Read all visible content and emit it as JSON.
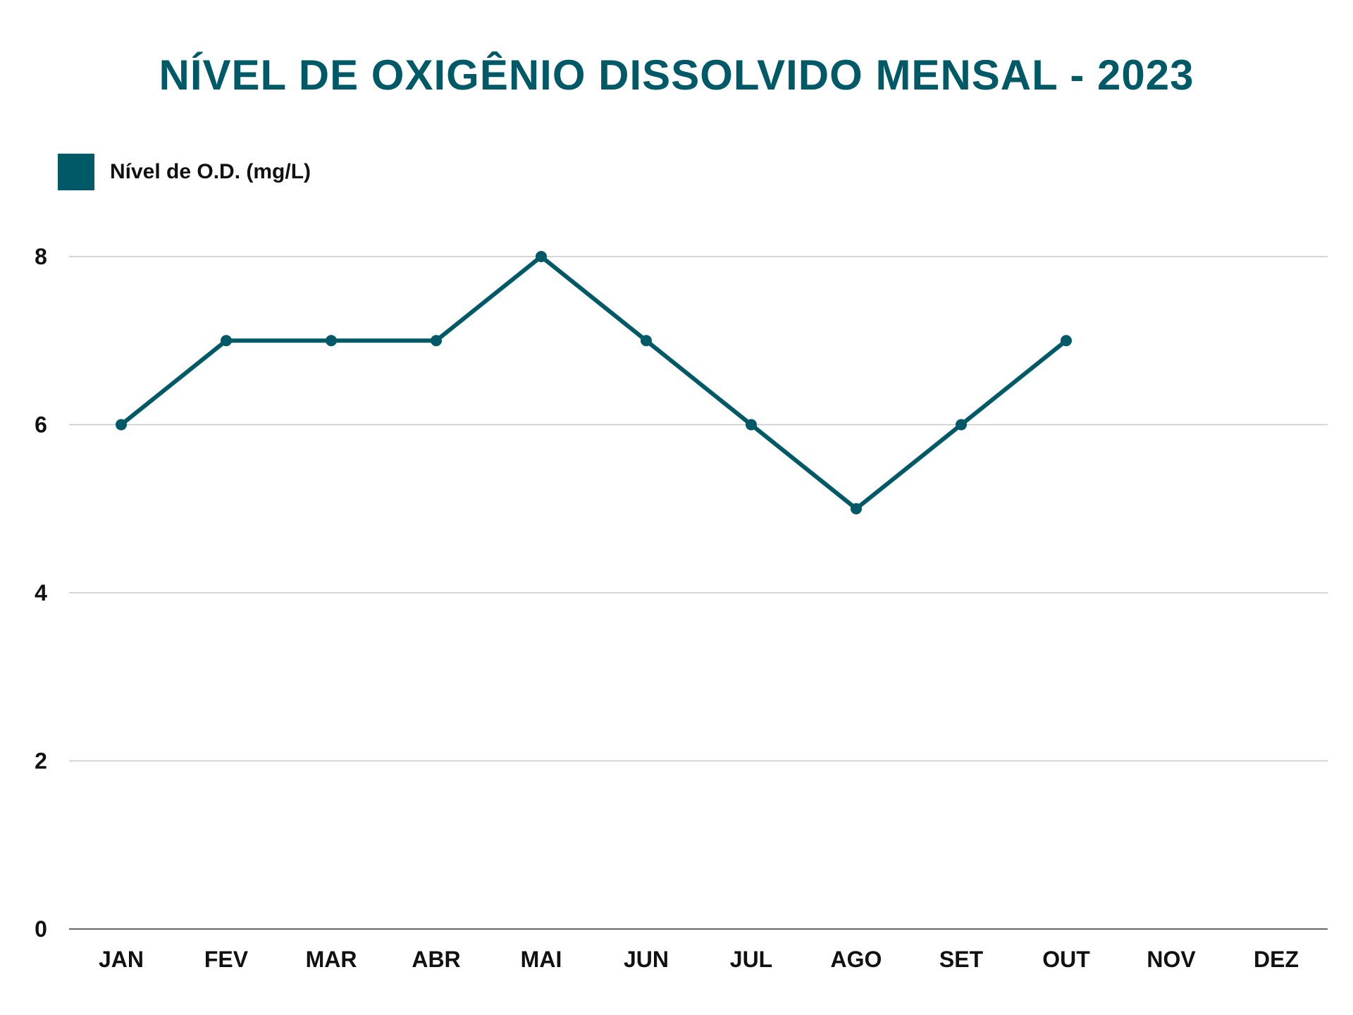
{
  "chart_data": {
    "type": "line",
    "title": "NÍVEL DE OXIGÊNIO DISSOLVIDO MENSAL - 2023",
    "xlabel": "",
    "ylabel": "",
    "categories": [
      "JAN",
      "FEV",
      "MAR",
      "ABR",
      "MAI",
      "JUN",
      "JUL",
      "AGO",
      "SET",
      "OUT",
      "NOV",
      "DEZ"
    ],
    "series": [
      {
        "name": "Nível de O.D. (mg/L)",
        "values": [
          6,
          7,
          7,
          7,
          8,
          7,
          6,
          5,
          6,
          7,
          null,
          null
        ],
        "color": "#005966"
      }
    ],
    "ylim": [
      0,
      8
    ],
    "yticks": [
      "0",
      "2",
      "4",
      "6",
      "8"
    ],
    "grid": true,
    "legend_position": "top-left"
  }
}
